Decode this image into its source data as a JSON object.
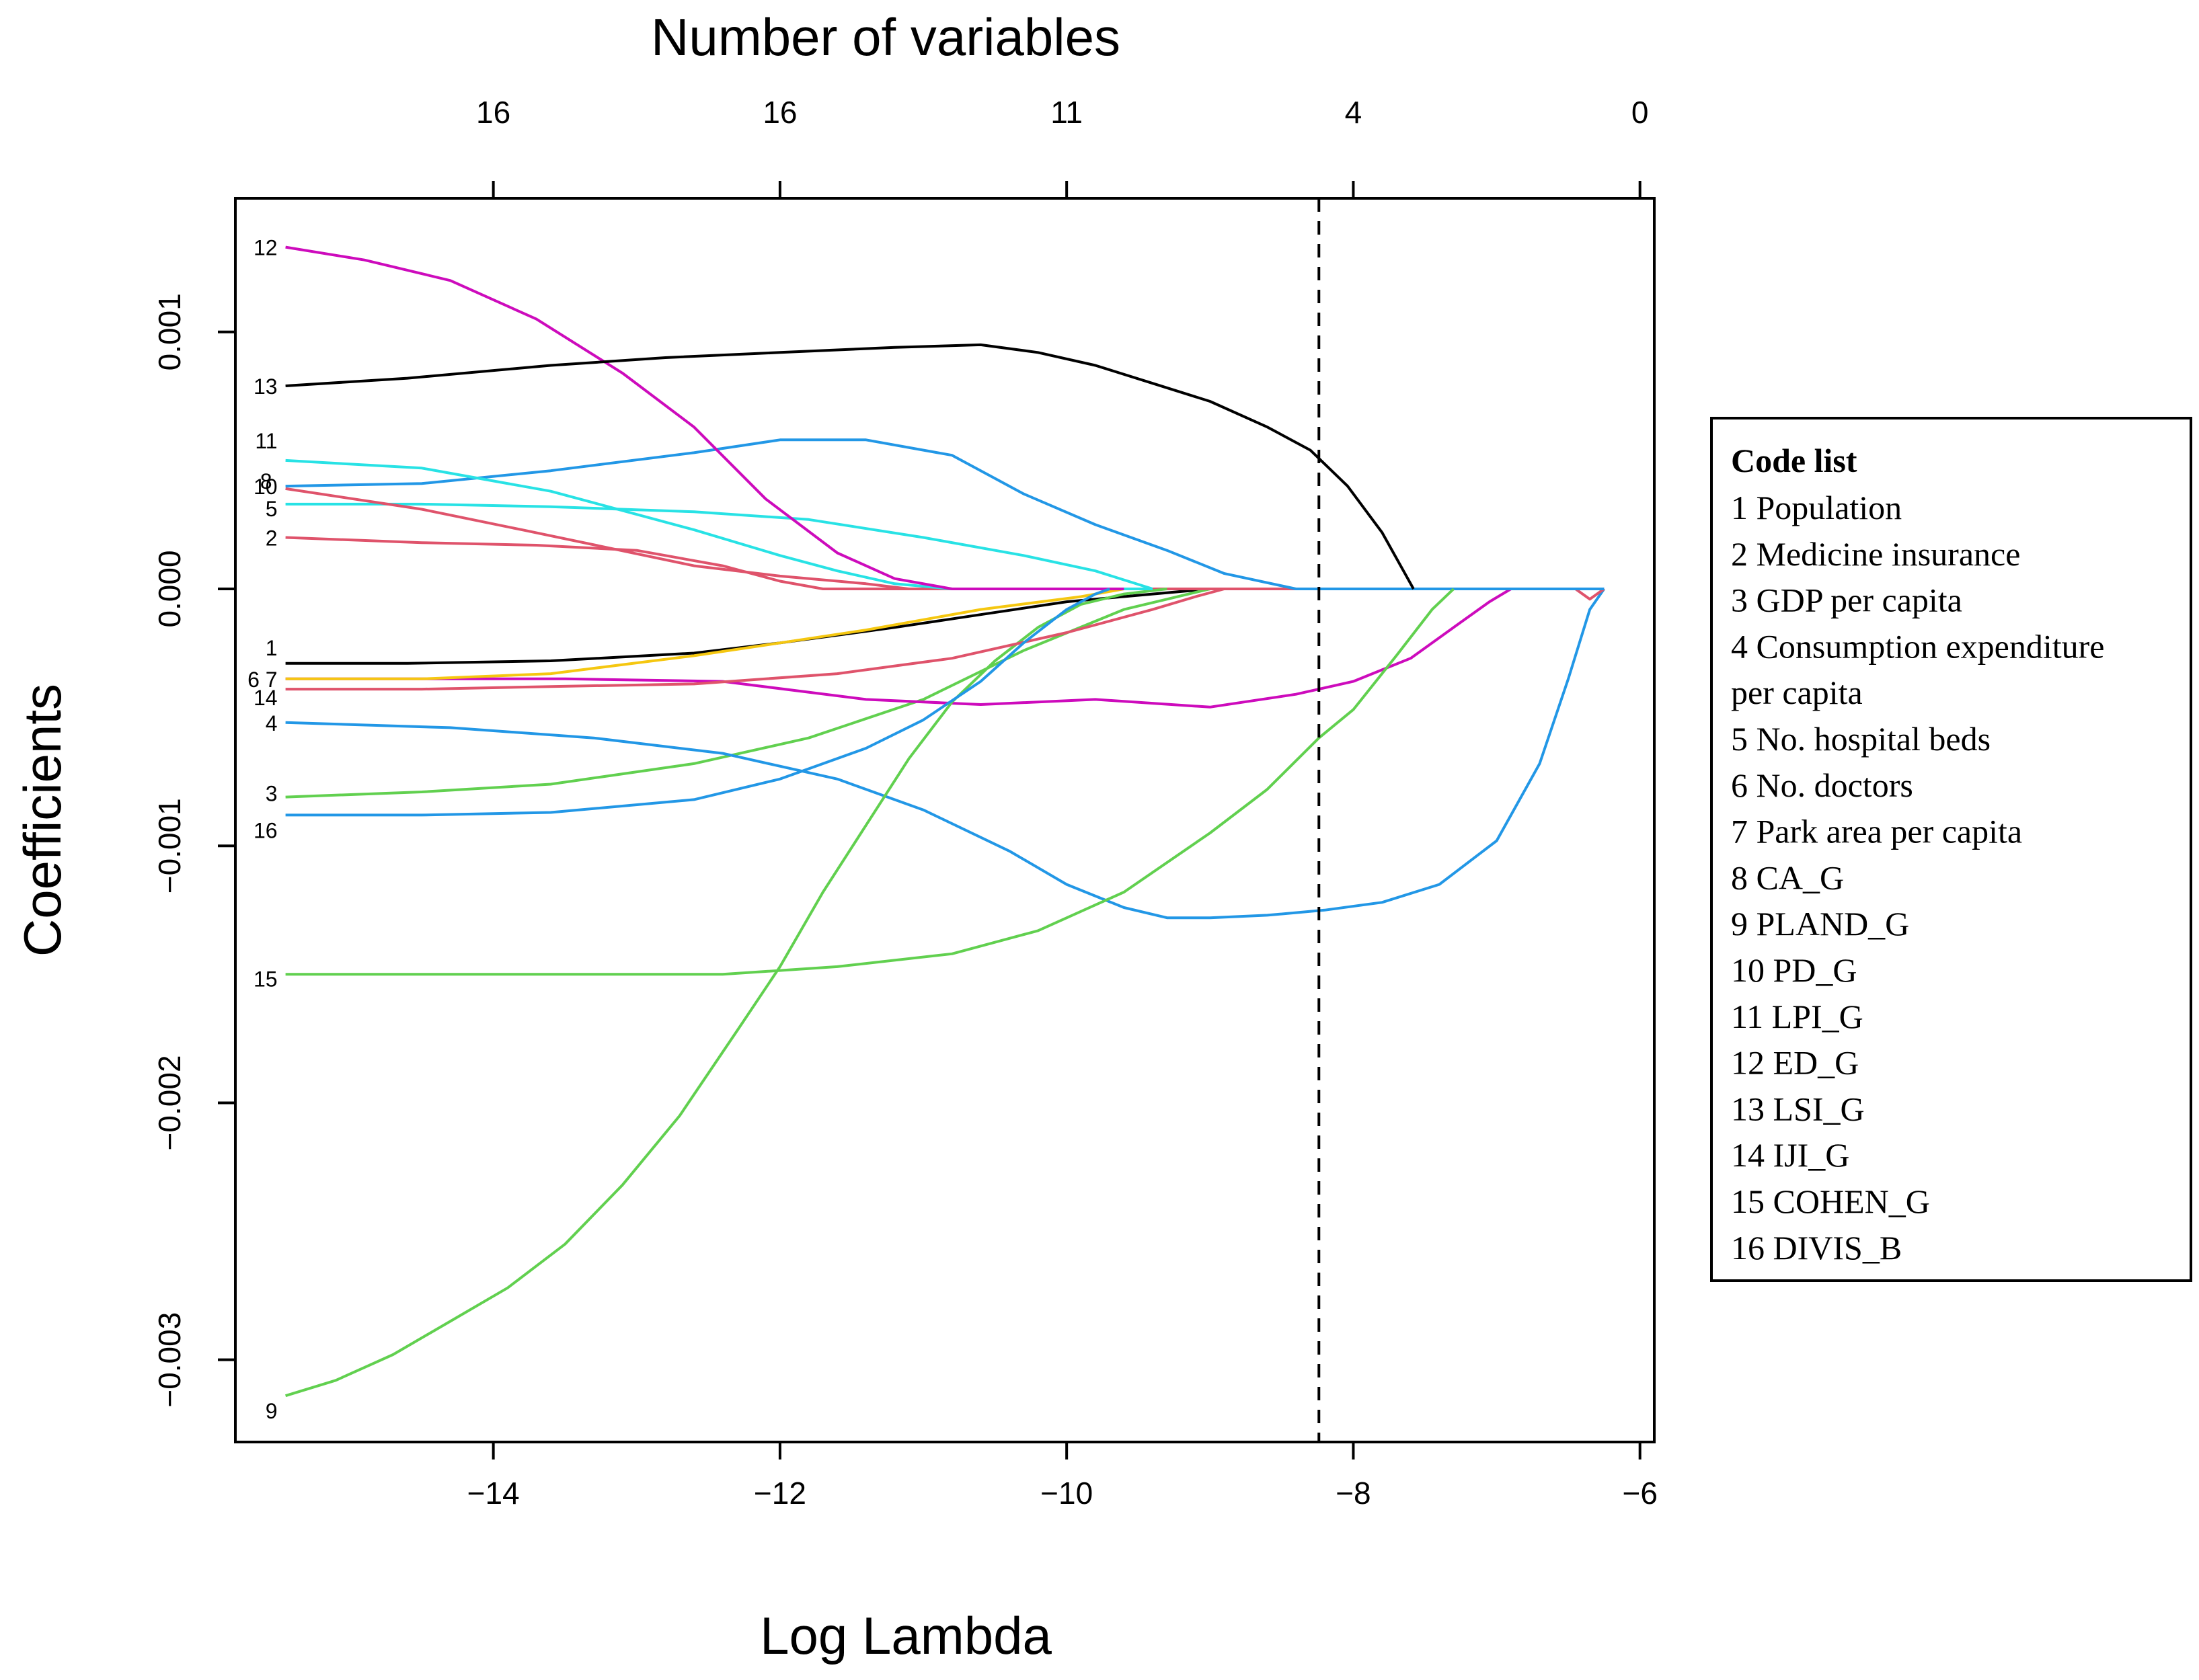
{
  "chart_data": {
    "type": "line",
    "title": "",
    "xlabel": "Log Lambda",
    "ylabel": "Coefficients",
    "top_axis_title": "Number of variables",
    "xlim": [
      -15.8,
      -5.9
    ],
    "ylim": [
      -0.00332,
      0.00152
    ],
    "x_ticks": [
      -14,
      -12,
      -10,
      -8,
      -6
    ],
    "x_tick_labels": [
      "−14",
      "−12",
      "−10",
      "−8",
      "−6"
    ],
    "y_ticks": [
      0.001,
      0.0,
      -0.001,
      -0.002,
      -0.003
    ],
    "y_tick_labels": [
      "0.001",
      "0.000",
      "−0.001",
      "−0.002",
      "−0.003"
    ],
    "top_ticks": [
      -14,
      -12,
      -10,
      -8,
      -6
    ],
    "top_tick_labels": [
      "16",
      "16",
      "11",
      "4",
      "0"
    ],
    "vline": -8.24,
    "grid": false,
    "legend_position": "right",
    "series": [
      {
        "name": "1",
        "color": "#000000",
        "points": [
          [
            -15.45,
            -0.00029
          ],
          [
            -14.6,
            -0.00029
          ],
          [
            -13.6,
            -0.00028
          ],
          [
            -12.6,
            -0.00025
          ],
          [
            -12,
            -0.00021
          ],
          [
            -11.2,
            -0.00015
          ],
          [
            -10.6,
            -0.0001
          ],
          [
            -10,
            -5e-05
          ],
          [
            -9.4,
            -2e-05
          ],
          [
            -9,
            0
          ]
        ]
      },
      {
        "name": "2",
        "color": "#DF536B",
        "points": [
          [
            -15.45,
            0.0002
          ],
          [
            -14.5,
            0.00018
          ],
          [
            -13.7,
            0.00017
          ],
          [
            -13,
            0.00015
          ],
          [
            -12.4,
            9e-05
          ],
          [
            -12,
            3e-05
          ],
          [
            -11.7,
            0
          ],
          [
            -9.3,
            0
          ]
        ]
      },
      {
        "name": "3",
        "color": "#61D04F",
        "points": [
          [
            -15.45,
            -0.00081
          ],
          [
            -14.5,
            -0.00079
          ],
          [
            -13.6,
            -0.00076
          ],
          [
            -12.6,
            -0.00068
          ],
          [
            -11.8,
            -0.00058
          ],
          [
            -11,
            -0.00043
          ],
          [
            -10.3,
            -0.00024
          ],
          [
            -9.6,
            -8e-05
          ],
          [
            -9,
            0
          ]
        ]
      },
      {
        "name": "4",
        "color": "#2297E6",
        "points": [
          [
            -15.45,
            -0.00052
          ],
          [
            -14.3,
            -0.00054
          ],
          [
            -13.3,
            -0.00058
          ],
          [
            -12.4,
            -0.00064
          ],
          [
            -11.6,
            -0.00074
          ],
          [
            -11,
            -0.00086
          ],
          [
            -10.4,
            -0.00102
          ],
          [
            -10,
            -0.00115
          ],
          [
            -9.6,
            -0.00124
          ],
          [
            -9.3,
            -0.00128
          ],
          [
            -9,
            -0.00128
          ],
          [
            -8.6,
            -0.00127
          ],
          [
            -8.2,
            -0.00125
          ],
          [
            -7.8,
            -0.00122
          ],
          [
            -7.4,
            -0.00115
          ],
          [
            -7,
            -0.00098
          ],
          [
            -6.7,
            -0.00068
          ],
          [
            -6.5,
            -0.00035
          ],
          [
            -6.35,
            -8e-05
          ],
          [
            -6.25,
            0
          ]
        ]
      },
      {
        "name": "5",
        "color": "#28E2E5",
        "points": [
          [
            -15.45,
            0.00033
          ],
          [
            -14.5,
            0.00033
          ],
          [
            -13.6,
            0.00032
          ],
          [
            -12.6,
            0.0003
          ],
          [
            -11.8,
            0.00027
          ],
          [
            -11,
            0.0002
          ],
          [
            -10.3,
            0.00013
          ],
          [
            -9.8,
            7e-05
          ],
          [
            -9.4,
            0
          ]
        ]
      },
      {
        "name": "6",
        "color": "#CD0BBC",
        "points": [
          [
            -15.45,
            -0.00035
          ],
          [
            -13.5,
            -0.00035
          ],
          [
            -12.4,
            -0.00036
          ],
          [
            -11.4,
            -0.00043
          ],
          [
            -10.6,
            -0.00045
          ],
          [
            -9.8,
            -0.00043
          ],
          [
            -9,
            -0.00046
          ],
          [
            -8.4,
            -0.00041
          ],
          [
            -8,
            -0.00036
          ],
          [
            -7.6,
            -0.00027
          ],
          [
            -7.3,
            -0.00015
          ],
          [
            -7.05,
            -5e-05
          ],
          [
            -6.9,
            0
          ],
          [
            -6.25,
            0
          ]
        ]
      },
      {
        "name": "7",
        "color": "#F5C710",
        "points": [
          [
            -15.45,
            -0.00035
          ],
          [
            -14.5,
            -0.00035
          ],
          [
            -13.6,
            -0.00033
          ],
          [
            -12.6,
            -0.00026
          ],
          [
            -12,
            -0.00021
          ],
          [
            -11.4,
            -0.00016
          ],
          [
            -10.6,
            -8e-05
          ],
          [
            -9.9,
            -3e-05
          ],
          [
            -9.6,
            0
          ]
        ]
      },
      {
        "name": "8",
        "color": "#DF536B",
        "points": [
          [
            -15.45,
            0.00039
          ],
          [
            -14.5,
            0.00031
          ],
          [
            -13.8,
            0.00023
          ],
          [
            -13.2,
            0.00016
          ],
          [
            -12.6,
            9e-05
          ],
          [
            -12,
            5e-05
          ],
          [
            -11.4,
            2e-05
          ],
          [
            -11.1,
            0
          ],
          [
            -9.6,
            0
          ],
          [
            -6.45,
            0
          ],
          [
            -6.35,
            -4e-05
          ],
          [
            -6.25,
            0
          ]
        ]
      },
      {
        "name": "9",
        "color": "#61D04F",
        "points": [
          [
            -15.45,
            -0.00314
          ],
          [
            -15.1,
            -0.00308
          ],
          [
            -14.7,
            -0.00298
          ],
          [
            -14.3,
            -0.00285
          ],
          [
            -13.9,
            -0.00272
          ],
          [
            -13.5,
            -0.00255
          ],
          [
            -13.1,
            -0.00232
          ],
          [
            -12.7,
            -0.00205
          ],
          [
            -12.3,
            -0.00172
          ],
          [
            -12,
            -0.00147
          ],
          [
            -11.7,
            -0.00118
          ],
          [
            -11.4,
            -0.00092
          ],
          [
            -11.1,
            -0.00066
          ],
          [
            -10.8,
            -0.00044
          ],
          [
            -10.5,
            -0.00028
          ],
          [
            -10.2,
            -0.00015
          ],
          [
            -9.9,
            -6e-05
          ],
          [
            -9.6,
            -2e-05
          ],
          [
            -9.3,
            0
          ]
        ]
      },
      {
        "name": "10",
        "color": "#2297E6",
        "points": [
          [
            -15.45,
            0.0004
          ],
          [
            -14.5,
            0.00041
          ],
          [
            -13.6,
            0.00046
          ],
          [
            -12.6,
            0.00053
          ],
          [
            -12,
            0.00058
          ],
          [
            -11.4,
            0.00058
          ],
          [
            -10.8,
            0.00052
          ],
          [
            -10.3,
            0.00037
          ],
          [
            -9.8,
            0.00025
          ],
          [
            -9.3,
            0.00015
          ],
          [
            -8.9,
            6e-05
          ],
          [
            -8.4,
            0
          ],
          [
            -6.25,
            0
          ]
        ]
      },
      {
        "name": "11",
        "color": "#28E2E5",
        "points": [
          [
            -15.45,
            0.0005
          ],
          [
            -14.5,
            0.00047
          ],
          [
            -13.6,
            0.00038
          ],
          [
            -12.6,
            0.00023
          ],
          [
            -12,
            0.00013
          ],
          [
            -11.6,
            7e-05
          ],
          [
            -11.2,
            2e-05
          ],
          [
            -10.8,
            0
          ],
          [
            -9.4,
            0
          ]
        ]
      },
      {
        "name": "12",
        "color": "#CD0BBC",
        "points": [
          [
            -15.45,
            0.00133
          ],
          [
            -14.9,
            0.00128
          ],
          [
            -14.3,
            0.0012
          ],
          [
            -13.7,
            0.00105
          ],
          [
            -13.1,
            0.00084
          ],
          [
            -12.6,
            0.00063
          ],
          [
            -12.1,
            0.00035
          ],
          [
            -11.6,
            0.00014
          ],
          [
            -11.2,
            4e-05
          ],
          [
            -10.8,
            0
          ],
          [
            -9.6,
            0
          ]
        ]
      },
      {
        "name": "13",
        "color": "#000000",
        "points": [
          [
            -15.45,
            0.00079
          ],
          [
            -14.6,
            0.00082
          ],
          [
            -13.6,
            0.00087
          ],
          [
            -12.8,
            0.0009
          ],
          [
            -12,
            0.00092
          ],
          [
            -11.2,
            0.00094
          ],
          [
            -10.6,
            0.00095
          ],
          [
            -10.2,
            0.00092
          ],
          [
            -9.8,
            0.00087
          ],
          [
            -9.4,
            0.0008
          ],
          [
            -9,
            0.00073
          ],
          [
            -8.6,
            0.00063
          ],
          [
            -8.3,
            0.00054
          ],
          [
            -8.04,
            0.0004
          ],
          [
            -7.8,
            0.00022
          ],
          [
            -7.6,
            2e-05
          ],
          [
            -7.58,
            0
          ]
        ]
      },
      {
        "name": "14",
        "color": "#DF536B",
        "points": [
          [
            -15.45,
            -0.00039
          ],
          [
            -14.5,
            -0.00039
          ],
          [
            -13.6,
            -0.00038
          ],
          [
            -12.6,
            -0.00037
          ],
          [
            -11.6,
            -0.00033
          ],
          [
            -10.8,
            -0.00027
          ],
          [
            -10,
            -0.00017
          ],
          [
            -9.4,
            -8e-05
          ],
          [
            -9.1,
            -3e-05
          ],
          [
            -8.9,
            0
          ]
        ]
      },
      {
        "name": "15",
        "color": "#61D04F",
        "points": [
          [
            -15.45,
            -0.0015
          ],
          [
            -13.6,
            -0.0015
          ],
          [
            -12.4,
            -0.0015
          ],
          [
            -11.6,
            -0.00147
          ],
          [
            -10.8,
            -0.00142
          ],
          [
            -10.2,
            -0.00133
          ],
          [
            -9.6,
            -0.00118
          ],
          [
            -9,
            -0.00095
          ],
          [
            -8.6,
            -0.00078
          ],
          [
            -8.24,
            -0.00058
          ],
          [
            -8,
            -0.00047
          ],
          [
            -7.7,
            -0.00026
          ],
          [
            -7.45,
            -8e-05
          ],
          [
            -7.3,
            0
          ]
        ]
      },
      {
        "name": "16",
        "color": "#2297E6",
        "points": [
          [
            -15.45,
            -0.00088
          ],
          [
            -14.5,
            -0.00088
          ],
          [
            -13.6,
            -0.00087
          ],
          [
            -12.6,
            -0.00082
          ],
          [
            -12,
            -0.00074
          ],
          [
            -11.4,
            -0.00062
          ],
          [
            -11,
            -0.00051
          ],
          [
            -10.6,
            -0.00036
          ],
          [
            -10.3,
            -0.00021
          ],
          [
            -10,
            -8e-05
          ],
          [
            -9.8,
            -2e-05
          ],
          [
            -9.7,
            0
          ]
        ]
      }
    ],
    "curve_labels": [
      {
        "text": "12",
        "series": "12"
      },
      {
        "text": "13",
        "series": "13"
      },
      {
        "text": "11",
        "series": "11"
      },
      {
        "text": "10",
        "series": "10"
      },
      {
        "text": "8",
        "series": "8"
      },
      {
        "text": "5",
        "series": "5"
      },
      {
        "text": "2",
        "series": "2"
      },
      {
        "text": "1",
        "series": "1"
      },
      {
        "text": "6 7",
        "series": "6"
      },
      {
        "text": "14",
        "series": "14"
      },
      {
        "text": "4",
        "series": "4"
      },
      {
        "text": "3",
        "series": "3"
      },
      {
        "text": "16",
        "series": "16"
      },
      {
        "text": "15",
        "series": "15"
      },
      {
        "text": "9",
        "series": "9"
      }
    ],
    "legend": {
      "title": "Code list",
      "lines": [
        "1 Population",
        "2 Medicine insurance",
        "3 GDP per capita",
        "4 Consumption expenditure",
        "per capita",
        "5 No. hospital beds",
        "6 No. doctors",
        "7 Park area per capita",
        "8 CA_G",
        "9 PLAND_G",
        "10 PD_G",
        "11 LPI_G",
        "12 ED_G",
        "13 LSI_G",
        "14 IJI_G",
        "15 COHEN_G",
        "16 DIVIS_B"
      ]
    }
  }
}
